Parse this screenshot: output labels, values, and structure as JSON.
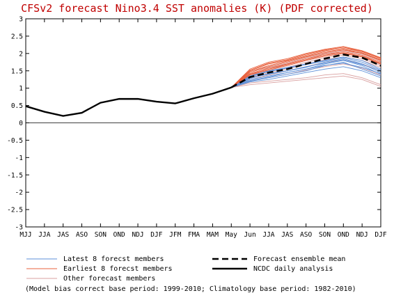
{
  "chart_data": {
    "type": "line",
    "title": "CFSv2 forecast Nino3.4 SST anomalies (K) (PDF corrected)",
    "categories": [
      "MJJ",
      "JJA",
      "JAS",
      "ASO",
      "SON",
      "OND",
      "NDJ",
      "DJF",
      "JFM",
      "FMA",
      "MAM",
      "May",
      "Jun",
      "JJA",
      "JAS",
      "ASO",
      "SON",
      "OND",
      "NDJ",
      "DJF"
    ],
    "ylim": [
      -3,
      3
    ],
    "yticks": [
      -3,
      -2.5,
      -2,
      -1.5,
      -1,
      -0.5,
      0,
      0.5,
      1,
      1.5,
      2,
      2.5,
      3
    ],
    "ytick_labels": [
      "-3",
      "-2.5",
      "-2",
      "-1.5",
      "-1",
      "-0.5",
      "0",
      "0.5",
      "1",
      "1.5",
      "2",
      "2.5",
      "3"
    ],
    "observed": {
      "name": "NCDC daily analysis",
      "color": "#000000",
      "values": [
        0.48,
        0.32,
        0.2,
        0.29,
        0.58,
        0.69,
        0.69,
        0.61,
        0.56,
        0.71,
        0.84,
        1.02
      ]
    },
    "ensemble_mean": {
      "name": "Forecast ensemble mean",
      "color": "#000000",
      "start_index": 11,
      "values": [
        1.02,
        1.32,
        1.45,
        1.55,
        1.7,
        1.85,
        1.97,
        1.88,
        1.65
      ]
    },
    "member_groups": [
      {
        "name": "Latest 8 forecst members",
        "color": "#5b8fd8",
        "start_index": 11,
        "members": [
          [
            1.02,
            1.3,
            1.4,
            1.5,
            1.6,
            1.75,
            1.85,
            1.7,
            1.45
          ],
          [
            1.02,
            1.25,
            1.35,
            1.45,
            1.55,
            1.7,
            1.8,
            1.65,
            1.4
          ],
          [
            1.02,
            1.35,
            1.5,
            1.6,
            1.7,
            1.8,
            1.9,
            1.8,
            1.55
          ],
          [
            1.02,
            1.2,
            1.3,
            1.4,
            1.5,
            1.65,
            1.75,
            1.55,
            1.35
          ],
          [
            1.02,
            1.28,
            1.42,
            1.5,
            1.62,
            1.72,
            1.82,
            1.68,
            1.5
          ],
          [
            1.02,
            1.22,
            1.32,
            1.45,
            1.55,
            1.66,
            1.72,
            1.6,
            1.42
          ],
          [
            1.02,
            1.33,
            1.48,
            1.58,
            1.68,
            1.78,
            1.88,
            1.75,
            1.52
          ],
          [
            1.02,
            1.18,
            1.25,
            1.35,
            1.45,
            1.55,
            1.62,
            1.5,
            1.3
          ]
        ]
      },
      {
        "name": "Earliest 8 forecst members",
        "color": "#e8603c",
        "start_index": 11,
        "members": [
          [
            1.02,
            1.45,
            1.62,
            1.75,
            1.9,
            2.02,
            2.1,
            2.0,
            1.8
          ],
          [
            1.02,
            1.5,
            1.7,
            1.8,
            1.95,
            2.08,
            2.15,
            2.05,
            1.85
          ],
          [
            1.02,
            1.42,
            1.58,
            1.7,
            1.85,
            1.98,
            2.05,
            1.95,
            1.75
          ],
          [
            1.02,
            1.55,
            1.75,
            1.85,
            2.0,
            2.12,
            2.2,
            2.08,
            1.88
          ],
          [
            1.02,
            1.4,
            1.55,
            1.68,
            1.82,
            1.95,
            2.02,
            1.92,
            1.72
          ],
          [
            1.02,
            1.48,
            1.65,
            1.78,
            1.92,
            2.05,
            2.12,
            2.02,
            1.82
          ],
          [
            1.02,
            1.38,
            1.52,
            1.65,
            1.8,
            1.92,
            2.0,
            1.9,
            1.7
          ],
          [
            1.02,
            1.52,
            1.72,
            1.82,
            1.98,
            2.1,
            2.18,
            2.06,
            1.86
          ]
        ]
      },
      {
        "name": "Other forecast members",
        "color": "#d9a0a0",
        "start_index": 11,
        "members": [
          [
            1.02,
            1.35,
            1.55,
            1.7,
            1.85,
            1.95,
            2.05,
            1.95,
            1.7
          ],
          [
            1.02,
            1.3,
            1.45,
            1.55,
            1.7,
            1.82,
            1.9,
            1.8,
            1.6
          ],
          [
            1.02,
            1.25,
            1.38,
            1.5,
            1.62,
            1.75,
            1.82,
            1.7,
            1.5
          ],
          [
            1.02,
            1.4,
            1.6,
            1.72,
            1.88,
            2.0,
            2.08,
            1.98,
            1.78
          ],
          [
            1.02,
            1.15,
            1.2,
            1.25,
            1.3,
            1.38,
            1.42,
            1.3,
            1.1
          ],
          [
            1.02,
            1.1,
            1.15,
            1.2,
            1.25,
            1.3,
            1.35,
            1.25,
            1.05
          ],
          [
            1.02,
            1.32,
            1.48,
            1.6,
            1.75,
            1.88,
            1.95,
            1.85,
            1.65
          ],
          [
            1.02,
            1.45,
            1.65,
            1.78,
            1.92,
            2.05,
            2.12,
            2.02,
            1.8
          ],
          [
            1.02,
            1.2,
            1.3,
            1.4,
            1.52,
            1.62,
            1.7,
            1.58,
            1.38
          ],
          [
            1.02,
            1.38,
            1.55,
            1.65,
            1.8,
            1.92,
            2.0,
            1.9,
            1.68
          ]
        ]
      }
    ],
    "zero_line": true,
    "grid": false,
    "legend": "bottom"
  },
  "legend": {
    "latest": "Latest 8 forecst members",
    "earliest": "Earliest 8 forecst members",
    "other": "Other forecast members",
    "mean": "Forecast ensemble mean",
    "ncdc": "NCDC daily analysis"
  },
  "footnote": "(Model bias correct base period: 1999-2010; Climatology base period: 1982-2010)"
}
